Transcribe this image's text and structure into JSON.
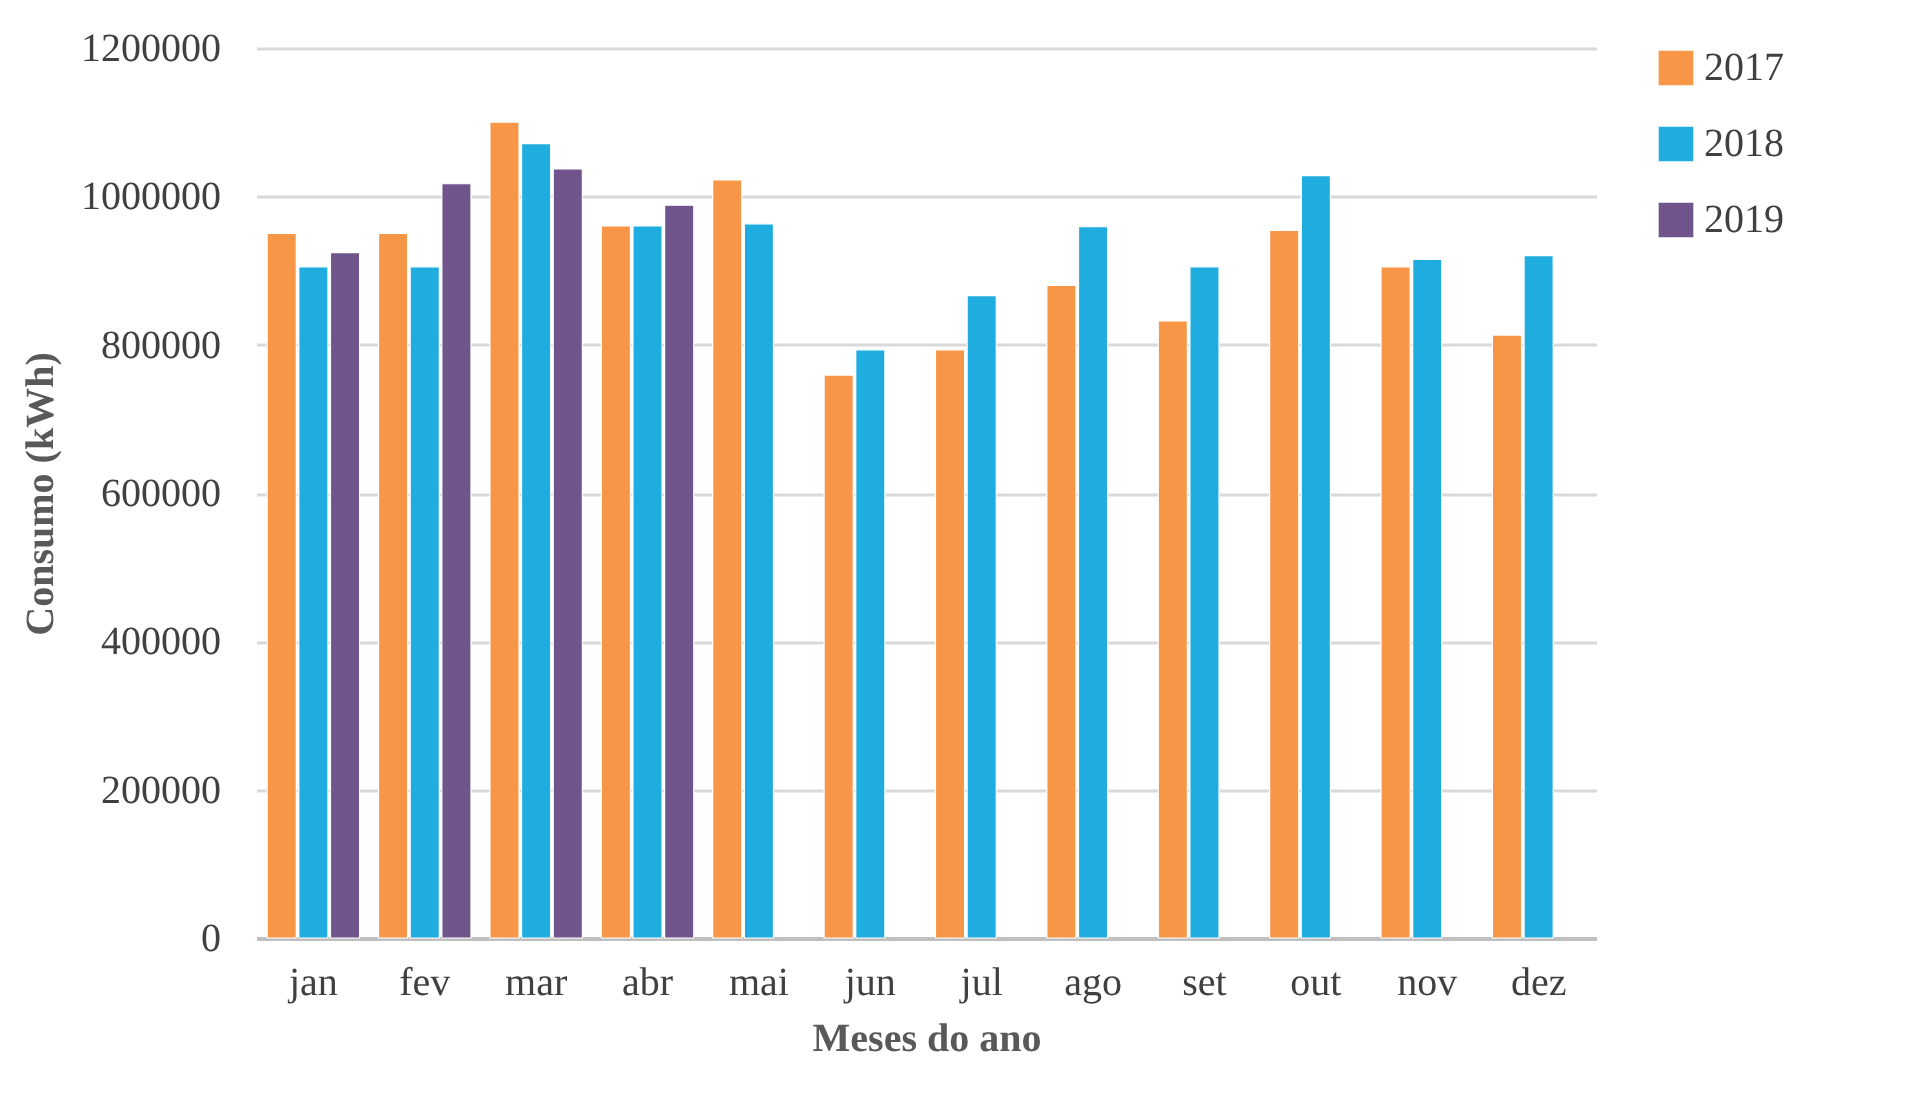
{
  "chart_data": {
    "type": "bar",
    "xlabel": "Meses do ano",
    "ylabel": "Consumo (kWh)",
    "categories": [
      "jan",
      "fev",
      "mar",
      "abr",
      "mai",
      "jun",
      "jul",
      "ago",
      "set",
      "out",
      "nov",
      "dez"
    ],
    "series": [
      {
        "name": "2017",
        "color": "#f79646",
        "values": [
          950000,
          950000,
          1100000,
          960000,
          1022000,
          759000,
          793000,
          880000,
          832000,
          954000,
          905000,
          813000
        ]
      },
      {
        "name": "2018",
        "color": "#1fade0",
        "values": [
          905000,
          905000,
          1071000,
          960000,
          963000,
          793000,
          866000,
          959000,
          905000,
          1028000,
          915000,
          920000
        ]
      },
      {
        "name": "2019",
        "color": "#6f558c",
        "values": [
          924000,
          1017000,
          1037000,
          988000,
          null,
          null,
          null,
          null,
          null,
          null,
          null,
          null
        ]
      }
    ],
    "ylim": [
      0,
      1200000
    ],
    "yticks": [
      0,
      200000,
      400000,
      600000,
      800000,
      1000000,
      1200000
    ],
    "grid": "y",
    "legend": "right"
  }
}
